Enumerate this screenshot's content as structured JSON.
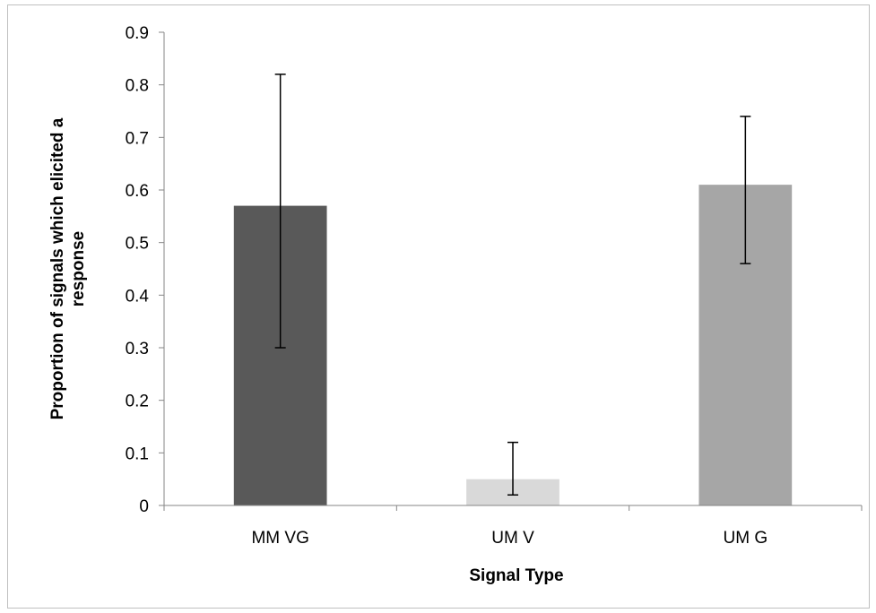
{
  "chart_data": {
    "type": "bar",
    "title": "",
    "xlabel": "Signal Type",
    "ylabel": "Proportion of signals which elicited a response",
    "ylabel_lines": [
      "Proportion of signals which elicited a",
      "response"
    ],
    "ylim": [
      0,
      0.9
    ],
    "yticks": [
      "0",
      "0.1",
      "0.2",
      "0.3",
      "0.4",
      "0.5",
      "0.6",
      "0.7",
      "0.8",
      "0.9"
    ],
    "ytick_values": [
      0,
      0.1,
      0.2,
      0.3,
      0.4,
      0.5,
      0.6,
      0.7,
      0.8,
      0.9
    ],
    "categories": [
      "MM VG",
      "UM V",
      "UM G"
    ],
    "values": [
      0.57,
      0.05,
      0.61
    ],
    "error_low": [
      0.3,
      0.02,
      0.46
    ],
    "error_high": [
      0.82,
      0.12,
      0.74
    ],
    "colors": [
      "#595959",
      "#d9d9d9",
      "#a6a6a6"
    ],
    "grid": false,
    "legend": "none"
  }
}
